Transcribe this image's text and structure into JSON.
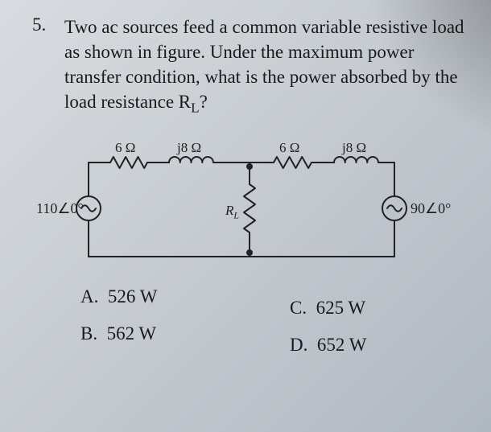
{
  "question": {
    "number": "5.",
    "text_html": "Two ac sources feed a common variable resistive load as shown in figure. Under the maximum power transfer condition, what is the power absorbed by the load resistance R<sub class='sub'>L</sub>?"
  },
  "circuit": {
    "left_resistor": "6 Ω",
    "left_inductor": "j8 Ω",
    "right_resistor": "6 Ω",
    "right_inductor": "j8 Ω",
    "load_label": "R",
    "load_sub": "L",
    "left_source": "110∠0°",
    "right_source": "90∠0°",
    "stroke": "#222222",
    "stroke_width": 2
  },
  "answers": {
    "A": "526 W",
    "B": "562 W",
    "C": "625 W",
    "D": "652 W"
  }
}
